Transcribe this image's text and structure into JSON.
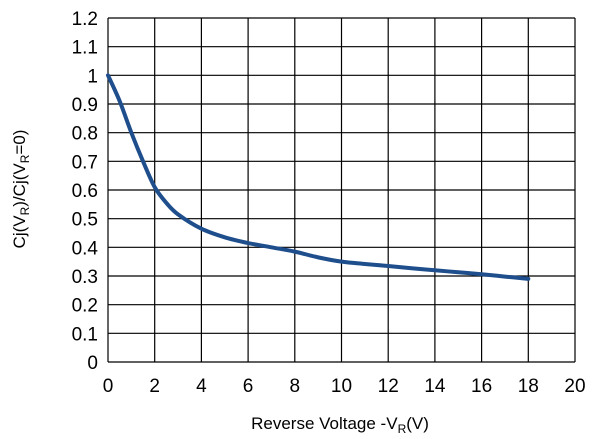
{
  "chart_data": {
    "type": "line",
    "title": "",
    "xlabel": {
      "prefix": "Reverse Voltage   -V",
      "sub": "R",
      "suffix": "(V)"
    },
    "ylabel": {
      "p1": "Cj(V",
      "s1": "R",
      "p2": ")/Cj(V",
      "s2": "R",
      "p3": "=0)"
    },
    "xlim": [
      0,
      20
    ],
    "ylim": [
      0,
      1.2
    ],
    "x_ticks": [
      0,
      2,
      4,
      6,
      8,
      10,
      12,
      14,
      16,
      18,
      20
    ],
    "x_tick_labels": [
      "0",
      "2",
      "4",
      "6",
      "8",
      "10",
      "12",
      "14",
      "16",
      "18",
      "20"
    ],
    "y_ticks": [
      0,
      0.1,
      0.2,
      0.3,
      0.4,
      0.5,
      0.6,
      0.7,
      0.8,
      0.9,
      1,
      1.1,
      1.2
    ],
    "y_tick_labels": [
      "0",
      "0.1",
      "0.2",
      "0.3",
      "0.4",
      "0.5",
      "0.6",
      "0.7",
      "0.8",
      "0.9",
      "1",
      "1.1",
      "1.2"
    ],
    "grid": true,
    "series": [
      {
        "color": "#1f4e8c",
        "x": [
          0,
          0.5,
          1,
          1.5,
          2,
          2.5,
          3,
          4,
          5,
          6,
          7,
          8,
          9,
          10,
          11,
          12,
          13,
          14,
          15,
          16,
          17,
          18
        ],
        "y": [
          1.0,
          0.91,
          0.8,
          0.7,
          0.61,
          0.555,
          0.515,
          0.465,
          0.435,
          0.415,
          0.4,
          0.385,
          0.365,
          0.35,
          0.342,
          0.335,
          0.327,
          0.32,
          0.313,
          0.306,
          0.298,
          0.29
        ]
      }
    ]
  }
}
